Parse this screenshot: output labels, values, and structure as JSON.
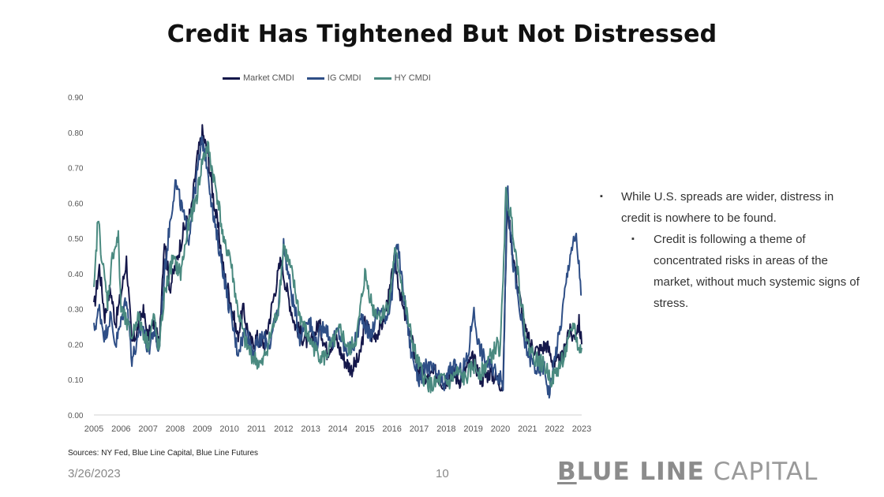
{
  "slide": {
    "title": "Credit Has Tightened But Not Distressed",
    "sources": "Sources: NY Fed, Blue Line Capital, Blue Line Futures",
    "date": "3/26/2023",
    "page_number": "10",
    "brand": {
      "first_letter": "B",
      "bold_rest": "LUE LINE",
      "light": " CAPITAL"
    },
    "bullets": [
      {
        "level": 1,
        "marker": "▪",
        "text": "While U.S. spreads are wider, distress in credit is nowhere to be found."
      },
      {
        "level": 2,
        "marker": "▪",
        "text": "Credit is following a theme of concentrated risks in areas of the market, without much systemic signs of stress."
      }
    ]
  },
  "chart_data": {
    "type": "line",
    "title": "",
    "xlabel": "",
    "ylabel": "",
    "xlim": [
      2005,
      2023
    ],
    "ylim": [
      0,
      0.9
    ],
    "x_ticks": [
      "2005",
      "2006",
      "2007",
      "2008",
      "2009",
      "2010",
      "2011",
      "2012",
      "2013",
      "2014",
      "2015",
      "2016",
      "2017",
      "2018",
      "2019",
      "2020",
      "2021",
      "2022",
      "2023"
    ],
    "y_ticks": [
      "0.00",
      "0.10",
      "0.20",
      "0.30",
      "0.40",
      "0.50",
      "0.60",
      "0.70",
      "0.80",
      "0.90"
    ],
    "grid": false,
    "legend_position": "top",
    "series": [
      {
        "name": "Market CMDI",
        "color": "#14174a",
        "points": [
          [
            2005.0,
            0.3
          ],
          [
            2005.2,
            0.42
          ],
          [
            2005.4,
            0.28
          ],
          [
            2005.6,
            0.36
          ],
          [
            2005.8,
            0.26
          ],
          [
            2006.0,
            0.34
          ],
          [
            2006.2,
            0.44
          ],
          [
            2006.4,
            0.2
          ],
          [
            2006.6,
            0.24
          ],
          [
            2006.8,
            0.3
          ],
          [
            2007.0,
            0.22
          ],
          [
            2007.2,
            0.26
          ],
          [
            2007.4,
            0.2
          ],
          [
            2007.6,
            0.5
          ],
          [
            2007.8,
            0.36
          ],
          [
            2008.0,
            0.42
          ],
          [
            2008.3,
            0.52
          ],
          [
            2008.6,
            0.58
          ],
          [
            2008.8,
            0.72
          ],
          [
            2009.0,
            0.8
          ],
          [
            2009.2,
            0.74
          ],
          [
            2009.4,
            0.62
          ],
          [
            2009.6,
            0.52
          ],
          [
            2009.8,
            0.4
          ],
          [
            2010.0,
            0.34
          ],
          [
            2010.3,
            0.22
          ],
          [
            2010.5,
            0.3
          ],
          [
            2010.8,
            0.2
          ],
          [
            2011.0,
            0.22
          ],
          [
            2011.3,
            0.2
          ],
          [
            2011.6,
            0.32
          ],
          [
            2011.9,
            0.44
          ],
          [
            2012.1,
            0.36
          ],
          [
            2012.4,
            0.26
          ],
          [
            2012.7,
            0.22
          ],
          [
            2013.0,
            0.2
          ],
          [
            2013.3,
            0.26
          ],
          [
            2013.6,
            0.18
          ],
          [
            2013.9,
            0.22
          ],
          [
            2014.2,
            0.16
          ],
          [
            2014.5,
            0.13
          ],
          [
            2014.8,
            0.16
          ],
          [
            2015.0,
            0.26
          ],
          [
            2015.3,
            0.22
          ],
          [
            2015.6,
            0.25
          ],
          [
            2015.9,
            0.34
          ],
          [
            2016.1,
            0.44
          ],
          [
            2016.4,
            0.3
          ],
          [
            2016.7,
            0.22
          ],
          [
            2017.0,
            0.12
          ],
          [
            2017.3,
            0.1
          ],
          [
            2017.6,
            0.12
          ],
          [
            2017.9,
            0.09
          ],
          [
            2018.2,
            0.12
          ],
          [
            2018.5,
            0.1
          ],
          [
            2018.8,
            0.14
          ],
          [
            2019.0,
            0.16
          ],
          [
            2019.3,
            0.1
          ],
          [
            2019.6,
            0.12
          ],
          [
            2019.9,
            0.1
          ],
          [
            2020.1,
            0.08
          ],
          [
            2020.25,
            0.6
          ],
          [
            2020.45,
            0.46
          ],
          [
            2020.7,
            0.34
          ],
          [
            2020.9,
            0.24
          ],
          [
            2021.1,
            0.2
          ],
          [
            2021.4,
            0.18
          ],
          [
            2021.7,
            0.2
          ],
          [
            2022.0,
            0.14
          ],
          [
            2022.3,
            0.16
          ],
          [
            2022.5,
            0.24
          ],
          [
            2022.7,
            0.22
          ],
          [
            2022.9,
            0.26
          ],
          [
            2023.0,
            0.2
          ]
        ]
      },
      {
        "name": "IG CMDI",
        "color": "#2e4e86",
        "points": [
          [
            2005.0,
            0.24
          ],
          [
            2005.2,
            0.3
          ],
          [
            2005.4,
            0.22
          ],
          [
            2005.6,
            0.28
          ],
          [
            2005.8,
            0.2
          ],
          [
            2006.0,
            0.26
          ],
          [
            2006.2,
            0.34
          ],
          [
            2006.4,
            0.16
          ],
          [
            2006.6,
            0.2
          ],
          [
            2006.8,
            0.26
          ],
          [
            2007.0,
            0.18
          ],
          [
            2007.2,
            0.24
          ],
          [
            2007.4,
            0.18
          ],
          [
            2007.6,
            0.4
          ],
          [
            2007.8,
            0.54
          ],
          [
            2008.0,
            0.66
          ],
          [
            2008.2,
            0.6
          ],
          [
            2008.5,
            0.5
          ],
          [
            2008.8,
            0.68
          ],
          [
            2009.0,
            0.78
          ],
          [
            2009.2,
            0.7
          ],
          [
            2009.4,
            0.56
          ],
          [
            2009.7,
            0.44
          ],
          [
            2010.0,
            0.3
          ],
          [
            2010.3,
            0.18
          ],
          [
            2010.6,
            0.24
          ],
          [
            2010.9,
            0.18
          ],
          [
            2011.2,
            0.22
          ],
          [
            2011.5,
            0.2
          ],
          [
            2011.8,
            0.3
          ],
          [
            2012.0,
            0.48
          ],
          [
            2012.3,
            0.34
          ],
          [
            2012.6,
            0.22
          ],
          [
            2012.9,
            0.28
          ],
          [
            2013.2,
            0.2
          ],
          [
            2013.5,
            0.26
          ],
          [
            2013.8,
            0.2
          ],
          [
            2014.0,
            0.24
          ],
          [
            2014.3,
            0.18
          ],
          [
            2014.6,
            0.2
          ],
          [
            2014.9,
            0.28
          ],
          [
            2015.2,
            0.22
          ],
          [
            2015.5,
            0.3
          ],
          [
            2015.8,
            0.28
          ],
          [
            2016.0,
            0.34
          ],
          [
            2016.2,
            0.49
          ],
          [
            2016.4,
            0.36
          ],
          [
            2016.7,
            0.18
          ],
          [
            2017.0,
            0.1
          ],
          [
            2017.3,
            0.14
          ],
          [
            2017.6,
            0.12
          ],
          [
            2017.9,
            0.08
          ],
          [
            2018.2,
            0.14
          ],
          [
            2018.5,
            0.12
          ],
          [
            2018.8,
            0.16
          ],
          [
            2019.0,
            0.3
          ],
          [
            2019.2,
            0.2
          ],
          [
            2019.4,
            0.16
          ],
          [
            2019.6,
            0.14
          ],
          [
            2019.9,
            0.12
          ],
          [
            2020.1,
            0.08
          ],
          [
            2020.25,
            0.65
          ],
          [
            2020.45,
            0.44
          ],
          [
            2020.7,
            0.3
          ],
          [
            2020.9,
            0.2
          ],
          [
            2021.1,
            0.16
          ],
          [
            2021.4,
            0.12
          ],
          [
            2021.6,
            0.14
          ],
          [
            2021.8,
            0.06
          ],
          [
            2022.0,
            0.16
          ],
          [
            2022.2,
            0.24
          ],
          [
            2022.4,
            0.36
          ],
          [
            2022.6,
            0.47
          ],
          [
            2022.8,
            0.5
          ],
          [
            2022.9,
            0.42
          ],
          [
            2023.0,
            0.34
          ]
        ]
      },
      {
        "name": "HY CMDI",
        "color": "#4a8a80",
        "points": [
          [
            2005.0,
            0.34
          ],
          [
            2005.15,
            0.56
          ],
          [
            2005.3,
            0.44
          ],
          [
            2005.5,
            0.32
          ],
          [
            2005.7,
            0.46
          ],
          [
            2005.9,
            0.5
          ],
          [
            2006.0,
            0.3
          ],
          [
            2006.2,
            0.26
          ],
          [
            2006.4,
            0.22
          ],
          [
            2006.6,
            0.28
          ],
          [
            2006.8,
            0.24
          ],
          [
            2007.0,
            0.2
          ],
          [
            2007.2,
            0.28
          ],
          [
            2007.4,
            0.18
          ],
          [
            2007.6,
            0.34
          ],
          [
            2007.9,
            0.44
          ],
          [
            2008.2,
            0.4
          ],
          [
            2008.5,
            0.54
          ],
          [
            2008.8,
            0.62
          ],
          [
            2009.0,
            0.72
          ],
          [
            2009.2,
            0.76
          ],
          [
            2009.4,
            0.68
          ],
          [
            2009.6,
            0.6
          ],
          [
            2009.8,
            0.48
          ],
          [
            2010.0,
            0.46
          ],
          [
            2010.3,
            0.3
          ],
          [
            2010.6,
            0.2
          ],
          [
            2010.9,
            0.16
          ],
          [
            2011.2,
            0.14
          ],
          [
            2011.5,
            0.22
          ],
          [
            2011.8,
            0.3
          ],
          [
            2012.0,
            0.48
          ],
          [
            2012.3,
            0.4
          ],
          [
            2012.6,
            0.28
          ],
          [
            2012.9,
            0.22
          ],
          [
            2013.2,
            0.18
          ],
          [
            2013.5,
            0.16
          ],
          [
            2013.8,
            0.2
          ],
          [
            2014.1,
            0.24
          ],
          [
            2014.4,
            0.18
          ],
          [
            2014.7,
            0.22
          ],
          [
            2015.0,
            0.4
          ],
          [
            2015.3,
            0.3
          ],
          [
            2015.6,
            0.28
          ],
          [
            2015.9,
            0.32
          ],
          [
            2016.1,
            0.46
          ],
          [
            2016.3,
            0.4
          ],
          [
            2016.6,
            0.26
          ],
          [
            2016.9,
            0.16
          ],
          [
            2017.2,
            0.1
          ],
          [
            2017.5,
            0.08
          ],
          [
            2017.8,
            0.1
          ],
          [
            2018.1,
            0.09
          ],
          [
            2018.4,
            0.12
          ],
          [
            2018.7,
            0.1
          ],
          [
            2019.0,
            0.14
          ],
          [
            2019.3,
            0.12
          ],
          [
            2019.6,
            0.16
          ],
          [
            2019.9,
            0.2
          ],
          [
            2020.0,
            0.18
          ],
          [
            2020.2,
            0.62
          ],
          [
            2020.4,
            0.56
          ],
          [
            2020.6,
            0.44
          ],
          [
            2020.8,
            0.3
          ],
          [
            2021.0,
            0.2
          ],
          [
            2021.3,
            0.16
          ],
          [
            2021.6,
            0.14
          ],
          [
            2021.9,
            0.1
          ],
          [
            2022.2,
            0.14
          ],
          [
            2022.5,
            0.2
          ],
          [
            2022.7,
            0.26
          ],
          [
            2022.9,
            0.18
          ],
          [
            2023.0,
            0.19
          ]
        ]
      }
    ]
  }
}
